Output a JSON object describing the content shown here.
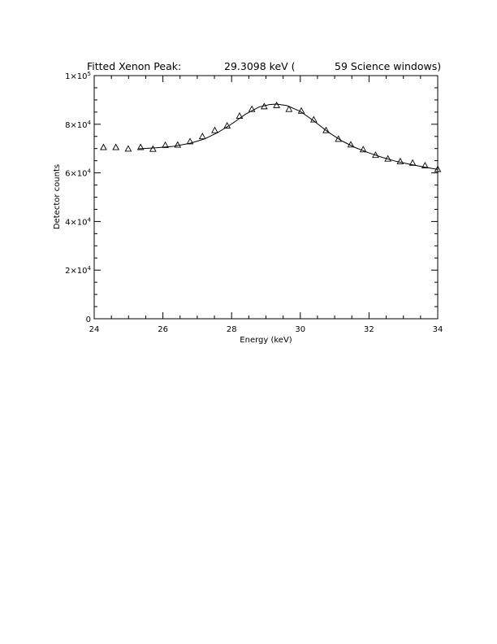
{
  "title": {
    "prefix": "Fitted Xenon Peak:",
    "energy": "29.3098 keV (",
    "windows": "59 Science windows)"
  },
  "chart_data": {
    "type": "scatter",
    "title": "Fitted Xenon Peak: 29.3098 keV ( 59 Science windows)",
    "xlabel": "Energy (keV)",
    "ylabel": "Detector counts",
    "xlim": [
      24,
      34
    ],
    "ylim": [
      0,
      100000
    ],
    "x_ticks": [
      24,
      26,
      28,
      30,
      32,
      34
    ],
    "x_tick_labels": [
      "24",
      "26",
      "28",
      "30",
      "32",
      "34"
    ],
    "y_ticks": [
      0,
      20000,
      40000,
      60000,
      80000,
      100000
    ],
    "y_tick_labels": [
      {
        "mant": "0",
        "exp": ""
      },
      {
        "mant": "2×10",
        "exp": "4"
      },
      {
        "mant": "4×10",
        "exp": "4"
      },
      {
        "mant": "6×10",
        "exp": "4"
      },
      {
        "mant": "8×10",
        "exp": "4"
      },
      {
        "mant": "1×10",
        "exp": "5"
      }
    ],
    "marker": "triangle",
    "color": "#000000",
    "grid": false,
    "series": [
      {
        "type": "scatter",
        "points": [
          [
            24.27,
            70400
          ],
          [
            24.63,
            70400
          ],
          [
            24.99,
            69800
          ],
          [
            25.35,
            70400
          ],
          [
            25.71,
            69700
          ],
          [
            26.07,
            71300
          ],
          [
            26.43,
            71400
          ],
          [
            26.79,
            72800
          ],
          [
            27.15,
            74900
          ],
          [
            27.51,
            77400
          ],
          [
            27.87,
            79300
          ],
          [
            28.23,
            83300
          ],
          [
            28.59,
            86100
          ],
          [
            28.95,
            87200
          ],
          [
            29.31,
            87700
          ],
          [
            29.67,
            86100
          ],
          [
            30.03,
            85400
          ],
          [
            30.39,
            81800
          ],
          [
            30.75,
            77400
          ],
          [
            31.11,
            73800
          ],
          [
            31.47,
            71500
          ],
          [
            31.83,
            69500
          ],
          [
            32.19,
            67200
          ],
          [
            32.55,
            65700
          ],
          [
            32.91,
            64600
          ],
          [
            33.27,
            64000
          ],
          [
            33.63,
            62900
          ],
          [
            34.0,
            61400
          ]
        ]
      },
      {
        "type": "line",
        "points": [
          [
            25.3,
            69900
          ],
          [
            25.8,
            70300
          ],
          [
            26.3,
            70900
          ],
          [
            26.8,
            72200
          ],
          [
            27.2,
            73900
          ],
          [
            27.6,
            76600
          ],
          [
            28.0,
            80100
          ],
          [
            28.4,
            84100
          ],
          [
            28.8,
            87100
          ],
          [
            29.1,
            88100
          ],
          [
            29.31,
            88300
          ],
          [
            29.6,
            87700
          ],
          [
            30.0,
            85300
          ],
          [
            30.4,
            81300
          ],
          [
            30.8,
            76900
          ],
          [
            31.2,
            73200
          ],
          [
            31.6,
            70400
          ],
          [
            32.0,
            68200
          ],
          [
            32.4,
            66300
          ],
          [
            32.8,
            64700
          ],
          [
            33.2,
            63500
          ],
          [
            33.6,
            62400
          ],
          [
            34.0,
            61400
          ]
        ]
      }
    ]
  }
}
